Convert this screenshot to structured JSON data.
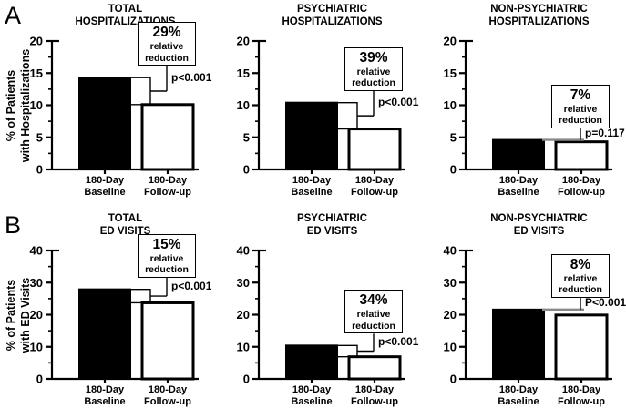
{
  "colors": {
    "background": "#ffffff",
    "axis": "#000000",
    "bar_dark": "#000000",
    "bar_light": "#ffffff",
    "bracket_gray": "#8a8a8a"
  },
  "rows": [
    {
      "letter": "A",
      "ylabel_lines": [
        "% of Patients",
        "with Hospitalizations"
      ]
    },
    {
      "letter": "B",
      "ylabel_lines": [
        "% of Patients",
        "with ED Visits"
      ]
    }
  ],
  "chart_data": [
    {
      "type": "bar",
      "row": "A",
      "title_lines": [
        "TOTAL",
        "HOSPITALIZATIONS"
      ],
      "ylabel": "% of Patients with Hospitalizations",
      "categories": [
        [
          "180-Day",
          "Baseline"
        ],
        [
          "180-Day",
          "Follow-up"
        ]
      ],
      "values": [
        14.3,
        10.1
      ],
      "ylim": [
        0,
        20
      ],
      "yticks": [
        0,
        5,
        10,
        15,
        20
      ],
      "minor_step": 2.5,
      "bar_fills": [
        "#000000",
        "#ffffff"
      ],
      "bracket_style": "black",
      "annotation": {
        "percent": "29%",
        "line1": "relative",
        "line2": "reduction",
        "p_label": "p<0.001"
      }
    },
    {
      "type": "bar",
      "row": "A",
      "title_lines": [
        "PSYCHIATRIC",
        "HOSPITALIZATIONS"
      ],
      "ylabel": "% of Patients with Hospitalizations",
      "categories": [
        [
          "180-Day",
          "Baseline"
        ],
        [
          "180-Day",
          "Follow-up"
        ]
      ],
      "values": [
        10.4,
        6.3
      ],
      "ylim": [
        0,
        20
      ],
      "yticks": [
        0,
        5,
        10,
        15,
        20
      ],
      "minor_step": 2.5,
      "bar_fills": [
        "#000000",
        "#ffffff"
      ],
      "bracket_style": "black",
      "annotation": {
        "percent": "39%",
        "line1": "relative",
        "line2": "reduction",
        "p_label": "p<0.001"
      }
    },
    {
      "type": "bar",
      "row": "A",
      "title_lines": [
        "NON-PSYCHIATRIC",
        "HOSPITALIZATIONS"
      ],
      "ylabel": "% of Patients with Hospitalizations",
      "categories": [
        [
          "180-Day",
          "Baseline"
        ],
        [
          "180-Day",
          "Follow-up"
        ]
      ],
      "values": [
        4.6,
        4.3
      ],
      "ylim": [
        0,
        20
      ],
      "yticks": [
        0,
        5,
        10,
        15,
        20
      ],
      "minor_step": 2.5,
      "bar_fills": [
        "#000000",
        "#ffffff"
      ],
      "bracket_style": "gray",
      "annotation": {
        "percent": "7%",
        "line1": "relative",
        "line2": "reduction",
        "p_label": "p=0.117"
      }
    },
    {
      "type": "bar",
      "row": "B",
      "title_lines": [
        "TOTAL",
        "ED VISITS"
      ],
      "ylabel": "% of Patients with ED Visits",
      "categories": [
        [
          "180-Day",
          "Baseline"
        ],
        [
          "180-Day",
          "Follow-up"
        ]
      ],
      "values": [
        27.9,
        23.7
      ],
      "ylim": [
        0,
        40
      ],
      "yticks": [
        0,
        10,
        20,
        30,
        40
      ],
      "minor_step": 5,
      "bar_fills": [
        "#000000",
        "#ffffff"
      ],
      "bracket_style": "black",
      "annotation": {
        "percent": "15%",
        "line1": "relative",
        "line2": "reduction",
        "p_label": "p<0.001"
      }
    },
    {
      "type": "bar",
      "row": "B",
      "title_lines": [
        "PSYCHIATRIC",
        "ED VISITS"
      ],
      "ylabel": "% of Patients with ED Visits",
      "categories": [
        [
          "180-Day",
          "Baseline"
        ],
        [
          "180-Day",
          "Follow-up"
        ]
      ],
      "values": [
        10.4,
        6.9
      ],
      "ylim": [
        0,
        40
      ],
      "yticks": [
        0,
        10,
        20,
        30,
        40
      ],
      "minor_step": 5,
      "bar_fills": [
        "#000000",
        "#ffffff"
      ],
      "bracket_style": "black",
      "annotation": {
        "percent": "34%",
        "line1": "relative",
        "line2": "reduction",
        "p_label": "p<0.001"
      }
    },
    {
      "type": "bar",
      "row": "B",
      "title_lines": [
        "NON-PSYCHIATRIC",
        "ED VISITS"
      ],
      "ylabel": "% of Patients with ED Visits",
      "categories": [
        [
          "180-Day",
          "Baseline"
        ],
        [
          "180-Day",
          "Follow-up"
        ]
      ],
      "values": [
        21.6,
        19.9
      ],
      "ylim": [
        0,
        40
      ],
      "yticks": [
        0,
        10,
        20,
        30,
        40
      ],
      "minor_step": 5,
      "bar_fills": [
        "#000000",
        "#ffffff"
      ],
      "bracket_style": "gray",
      "annotation": {
        "percent": "8%",
        "line1": "relative",
        "line2": "reduction",
        "p_label": "P<0.001"
      }
    }
  ]
}
